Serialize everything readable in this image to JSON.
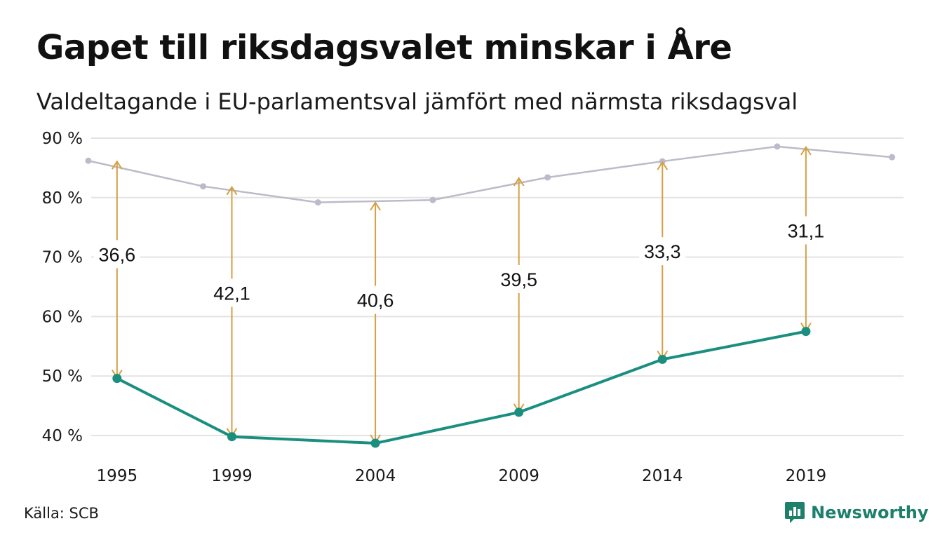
{
  "title": "Gapet till riksdagsvalet minskar i Åre",
  "subtitle": "Valdeltagande i EU-parlamentsval jämfört med närmsta riksdagsval",
  "source": "Källa: SCB",
  "brand": {
    "name": "Newsworthy",
    "icon": "newsworthy-logo-icon"
  },
  "colors": {
    "eu_line": "#1a8f7f",
    "riksdag_line": "#bdbac9",
    "gap_arrow": "#d4a045",
    "grid": "#e3e3e3",
    "brand": "#1e7f6b"
  },
  "chart_data": {
    "type": "line",
    "title": "Gapet till riksdagsvalet minskar i Åre",
    "subtitle": "Valdeltagande i EU-parlamentsval jämfört med närmsta riksdagsval",
    "x_ticks": [
      "1995",
      "1999",
      "2004",
      "2009",
      "2014",
      "2019"
    ],
    "xlim": [
      1994.1,
      2022.4
    ],
    "y_ticks": [
      "40 %",
      "50 %",
      "60 %",
      "70 %",
      "80 %",
      "90 %"
    ],
    "ylim": [
      38,
      90
    ],
    "grid": true,
    "series": [
      {
        "key": "riksdag",
        "x": [
          1994.0,
          1998.0,
          2002.0,
          2006.0,
          2010.0,
          2014.0,
          2018.0,
          2022.0
        ],
        "y": [
          86.2,
          81.9,
          79.2,
          79.6,
          83.4,
          86.1,
          88.6,
          86.8
        ]
      },
      {
        "key": "eu",
        "x": [
          1995.0,
          1999.0,
          2004.0,
          2009.0,
          2014.0,
          2019.0
        ],
        "y": [
          49.6,
          39.8,
          38.7,
          43.9,
          52.8,
          57.5
        ]
      }
    ],
    "gaps": [
      {
        "x": 1995.0,
        "from": 49.6,
        "to": 86.2,
        "label": "36,6",
        "label_y": 70.5
      },
      {
        "x": 1999.0,
        "from": 39.8,
        "to": 81.9,
        "label": "42,1",
        "label_y": 64.0
      },
      {
        "x": 2004.0,
        "from": 38.7,
        "to": 79.3,
        "label": "40,6",
        "label_y": 62.8
      },
      {
        "x": 2009.0,
        "from": 43.9,
        "to": 83.4,
        "label": "39,5",
        "label_y": 66.3
      },
      {
        "x": 2014.0,
        "from": 52.8,
        "to": 86.1,
        "label": "33,3",
        "label_y": 71.0
      },
      {
        "x": 2019.0,
        "from": 57.5,
        "to": 88.6,
        "label": "31,1",
        "label_y": 74.5
      }
    ]
  }
}
